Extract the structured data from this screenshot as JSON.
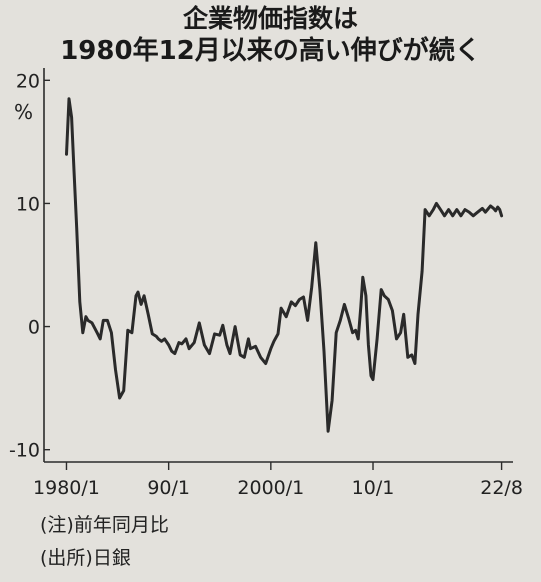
{
  "title_line1": "企業物価指数は",
  "title_line2": "1980年12月以来の高い伸びが続く",
  "notes": [
    "(注)前年同月比",
    "(出所)日銀"
  ],
  "chart_data": {
    "type": "line",
    "ylabel_unit": "%",
    "ylim": [
      -11,
      21
    ],
    "yticks": [
      20,
      10,
      0,
      -10
    ],
    "ytick_labels": [
      "20",
      "10",
      "0",
      "-10"
    ],
    "xticks": [
      1980.0,
      1990.0,
      2000.0,
      2010.0,
      2022.583
    ],
    "xtick_labels": [
      "1980/1",
      "90/1",
      "2000/1",
      "10/1",
      "22/8"
    ],
    "xlim": [
      1977.8,
      2023.7
    ],
    "color": "#2a2a2a",
    "grid": false,
    "x": [
      1980.0,
      1980.25,
      1980.5,
      1980.75,
      1981.0,
      1981.3,
      1981.6,
      1981.9,
      1982.1,
      1982.5,
      1983.0,
      1983.3,
      1983.6,
      1984.0,
      1984.4,
      1984.8,
      1985.2,
      1985.6,
      1986.0,
      1986.4,
      1986.8,
      1987.0,
      1987.3,
      1987.6,
      1988.0,
      1988.4,
      1988.8,
      1989.0,
      1989.3,
      1989.6,
      1990.0,
      1990.3,
      1990.6,
      1991.0,
      1991.3,
      1991.7,
      1992.0,
      1992.5,
      1993.0,
      1993.5,
      1994.0,
      1994.5,
      1995.0,
      1995.3,
      1995.7,
      1996.0,
      1996.5,
      1997.0,
      1997.4,
      1997.8,
      1998.0,
      1998.5,
      1999.0,
      1999.5,
      2000.0,
      2000.3,
      2000.7,
      2001.0,
      2001.5,
      2002.0,
      2002.4,
      2002.8,
      2003.2,
      2003.6,
      2004.0,
      2004.4,
      2004.8,
      2005.2,
      2005.6,
      2006.0,
      2006.4,
      2006.8,
      2007.2,
      2007.6,
      2008.0,
      2008.3,
      2008.55,
      2008.8,
      2009.0,
      2009.3,
      2009.55,
      2009.8,
      2010.0,
      2010.4,
      2010.8,
      2011.1,
      2011.5,
      2011.9,
      2012.3,
      2012.7,
      2013.0,
      2013.4,
      2013.8,
      2014.1,
      2014.4,
      2014.8,
      2015.1,
      2015.5,
      2015.9,
      2016.2,
      2016.6,
      2017.0,
      2017.4,
      2017.8,
      2018.2,
      2018.6,
      2019.0,
      2019.4,
      2019.8,
      2020.1,
      2020.4,
      2020.7,
      2021.0,
      2021.2,
      2021.5,
      2021.8,
      2022.0,
      2022.2,
      2022.4,
      2022.583
    ],
    "y": [
      14.0,
      18.5,
      17.0,
      12.5,
      8.0,
      2.0,
      -0.5,
      0.8,
      0.5,
      0.3,
      -0.5,
      -1.0,
      0.5,
      0.5,
      -0.5,
      -3.5,
      -5.8,
      -5.2,
      -0.3,
      -0.5,
      2.5,
      2.8,
      1.8,
      2.5,
      1.0,
      -0.6,
      -0.8,
      -1.0,
      -1.2,
      -1.0,
      -1.5,
      -2.0,
      -2.2,
      -1.3,
      -1.4,
      -1.0,
      -1.8,
      -1.3,
      0.3,
      -1.5,
      -2.2,
      -0.6,
      -0.7,
      0.1,
      -1.5,
      -2.2,
      0.0,
      -2.3,
      -2.5,
      -1.0,
      -1.8,
      -1.6,
      -2.5,
      -3.0,
      -1.8,
      -1.2,
      -0.6,
      1.5,
      0.8,
      2.0,
      1.7,
      2.2,
      2.4,
      0.5,
      3.2,
      6.8,
      3.0,
      -2.0,
      -8.5,
      -6.0,
      -0.5,
      0.5,
      1.8,
      0.7,
      -0.5,
      -0.3,
      -1.0,
      1.6,
      4.0,
      2.5,
      -1.5,
      -4.0,
      -4.3,
      -1.0,
      3.0,
      2.5,
      2.2,
      1.3,
      -1.0,
      -0.5,
      1.0,
      -2.5,
      -2.3,
      -3.0,
      1.0,
      4.5,
      9.5,
      9.0,
      9.5,
      10.0,
      9.5,
      9.0,
      9.5,
      9.0,
      9.5,
      9.0,
      9.5,
      9.3,
      9.0,
      9.2,
      9.4,
      9.6,
      9.3,
      9.5,
      9.8,
      9.6,
      9.4,
      9.7,
      9.5,
      9.0
    ]
  }
}
